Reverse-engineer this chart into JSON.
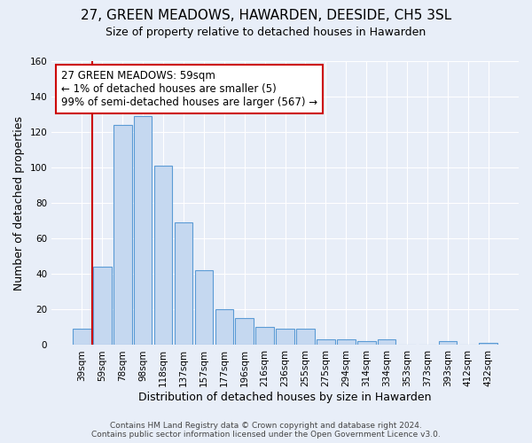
{
  "title": "27, GREEN MEADOWS, HAWARDEN, DEESIDE, CH5 3SL",
  "subtitle": "Size of property relative to detached houses in Hawarden",
  "xlabel": "Distribution of detached houses by size in Hawarden",
  "ylabel": "Number of detached properties",
  "bar_labels": [
    "39sqm",
    "59sqm",
    "78sqm",
    "98sqm",
    "118sqm",
    "137sqm",
    "157sqm",
    "177sqm",
    "196sqm",
    "216sqm",
    "236sqm",
    "255sqm",
    "275sqm",
    "294sqm",
    "314sqm",
    "334sqm",
    "353sqm",
    "373sqm",
    "393sqm",
    "412sqm",
    "432sqm"
  ],
  "bar_values": [
    9,
    44,
    124,
    129,
    101,
    69,
    42,
    20,
    15,
    10,
    9,
    9,
    3,
    3,
    2,
    3,
    0,
    0,
    2,
    0,
    1
  ],
  "highlight_index": 1,
  "bar_color": "#c5d8f0",
  "bar_edge_color": "#5b9bd5",
  "vline_color": "#cc0000",
  "annotation_text": "27 GREEN MEADOWS: 59sqm\n← 1% of detached houses are smaller (5)\n99% of semi-detached houses are larger (567) →",
  "annotation_box_edge_color": "#cc0000",
  "annotation_box_face_color": "#ffffff",
  "ylim": [
    0,
    160
  ],
  "yticks": [
    0,
    20,
    40,
    60,
    80,
    100,
    120,
    140,
    160
  ],
  "footer_line1": "Contains HM Land Registry data © Crown copyright and database right 2024.",
  "footer_line2": "Contains public sector information licensed under the Open Government Licence v3.0.",
  "bg_color": "#e8eef8",
  "plot_bg_color": "#e8eef8",
  "title_fontsize": 11,
  "subtitle_fontsize": 9,
  "axis_label_fontsize": 9,
  "tick_fontsize": 7.5,
  "annotation_fontsize": 8.5,
  "footer_fontsize": 6.5
}
